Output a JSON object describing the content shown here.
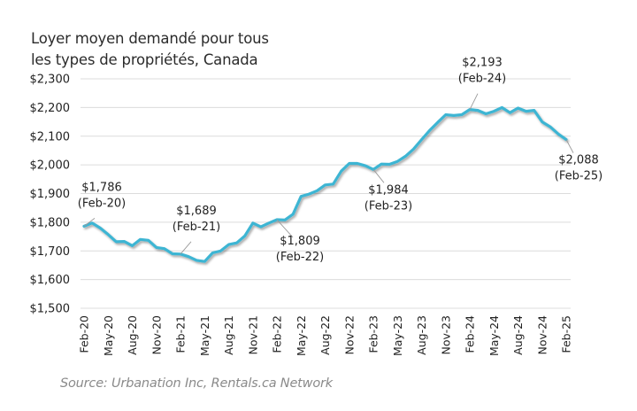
{
  "chart_data": {
    "type": "line",
    "title": [
      "Loyer moyen demandé pour tous",
      "les types de propriétés, Canada"
    ],
    "source": "Source: Urbanation Inc, Rentals.ca Network",
    "xlabel": "",
    "ylabel": "",
    "ylim": [
      1500,
      2300
    ],
    "yticks": [
      1500,
      1600,
      1700,
      1800,
      1900,
      2000,
      2100,
      2200,
      2300
    ],
    "ytick_labels": [
      "$1,500",
      "$1,600",
      "$1,700",
      "$1,800",
      "$1,900",
      "$2,000",
      "$2,100",
      "$2,200",
      "$2,300"
    ],
    "grid": true,
    "legend": "none",
    "line_color": "#3db5d3",
    "x": [
      "Feb-20",
      "Mar-20",
      "Apr-20",
      "May-20",
      "Jun-20",
      "Jul-20",
      "Aug-20",
      "Sep-20",
      "Oct-20",
      "Nov-20",
      "Dec-20",
      "Jan-21",
      "Feb-21",
      "Mar-21",
      "Apr-21",
      "May-21",
      "Jun-21",
      "Jul-21",
      "Aug-21",
      "Sep-21",
      "Oct-21",
      "Nov-21",
      "Dec-21",
      "Jan-22",
      "Feb-22",
      "Mar-22",
      "Apr-22",
      "May-22",
      "Jun-22",
      "Jul-22",
      "Aug-22",
      "Sep-22",
      "Oct-22",
      "Nov-22",
      "Dec-22",
      "Jan-23",
      "Feb-23",
      "Mar-23",
      "Apr-23",
      "May-23",
      "Jun-23",
      "Jul-23",
      "Aug-23",
      "Sep-23",
      "Oct-23",
      "Nov-23",
      "Dec-23",
      "Jan-24",
      "Feb-24",
      "Mar-24",
      "Apr-24",
      "May-24",
      "Jun-24",
      "Jul-24",
      "Aug-24",
      "Sep-24",
      "Oct-24",
      "Nov-24",
      "Dec-24",
      "Jan-25",
      "Feb-25"
    ],
    "xtick_labels": [
      "Feb-20",
      "May-20",
      "Aug-20",
      "Nov-20",
      "Feb-21",
      "May-21",
      "Aug-21",
      "Nov-21",
      "Feb-22",
      "May-22",
      "Aug-22",
      "Nov-22",
      "Feb-23",
      "May-23",
      "Aug-23",
      "Nov-23",
      "Feb-24",
      "May-24",
      "Aug-24",
      "Nov-24",
      "Feb-25"
    ],
    "series": [
      {
        "name": "Loyer moyen demandé",
        "values": [
          1786,
          1797,
          1780,
          1757,
          1732,
          1733,
          1718,
          1740,
          1737,
          1712,
          1708,
          1690,
          1689,
          1680,
          1667,
          1663,
          1693,
          1700,
          1722,
          1728,
          1752,
          1797,
          1784,
          1797,
          1809,
          1808,
          1828,
          1890,
          1898,
          1910,
          1930,
          1933,
          1978,
          2005,
          2005,
          1997,
          1984,
          2003,
          2002,
          2012,
          2030,
          2055,
          2088,
          2120,
          2148,
          2175,
          2172,
          2175,
          2193,
          2190,
          2178,
          2187,
          2200,
          2182,
          2198,
          2187,
          2190,
          2150,
          2133,
          2108,
          2088
        ]
      }
    ],
    "annotations": [
      {
        "x": "Feb-20",
        "value_label": "$1,786",
        "date_label": "(Feb-20)",
        "position": "above"
      },
      {
        "x": "Feb-21",
        "value_label": "$1,689",
        "date_label": "(Feb-21)",
        "position": "above"
      },
      {
        "x": "Feb-22",
        "value_label": "$1,809",
        "date_label": "(Feb-22)",
        "position": "below"
      },
      {
        "x": "Feb-23",
        "value_label": "$1,984",
        "date_label": "(Feb-23)",
        "position": "below"
      },
      {
        "x": "Feb-24",
        "value_label": "$2,193",
        "date_label": "(Feb-24)",
        "position": "above"
      },
      {
        "x": "Feb-25",
        "value_label": "$2,088",
        "date_label": "(Feb-25)",
        "position": "below"
      }
    ]
  }
}
